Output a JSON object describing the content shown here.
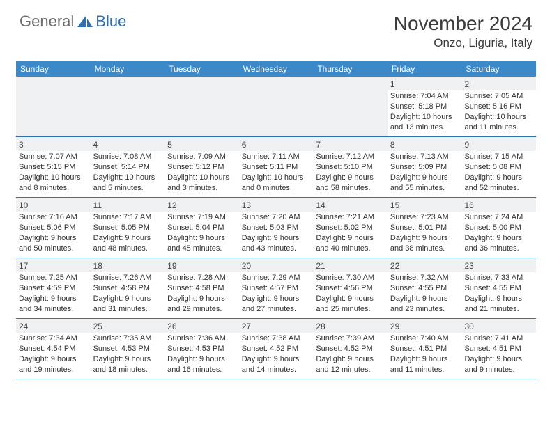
{
  "logo": {
    "text1": "General",
    "text2": "Blue"
  },
  "title": "November 2024",
  "location": "Onzo, Liguria, Italy",
  "colors": {
    "header_bar": "#3b89c9",
    "shade": "#eef0f2",
    "rule": "#2f6fb0",
    "logo_gray": "#6b6b6b",
    "logo_blue": "#2f6fb0"
  },
  "dow": [
    "Sunday",
    "Monday",
    "Tuesday",
    "Wednesday",
    "Thursday",
    "Friday",
    "Saturday"
  ],
  "weeks": [
    [
      null,
      null,
      null,
      null,
      null,
      {
        "n": "1",
        "sr": "Sunrise: 7:04 AM",
        "ss": "Sunset: 5:18 PM",
        "dl": "Daylight: 10 hours and 13 minutes."
      },
      {
        "n": "2",
        "sr": "Sunrise: 7:05 AM",
        "ss": "Sunset: 5:16 PM",
        "dl": "Daylight: 10 hours and 11 minutes."
      }
    ],
    [
      {
        "n": "3",
        "sr": "Sunrise: 7:07 AM",
        "ss": "Sunset: 5:15 PM",
        "dl": "Daylight: 10 hours and 8 minutes."
      },
      {
        "n": "4",
        "sr": "Sunrise: 7:08 AM",
        "ss": "Sunset: 5:14 PM",
        "dl": "Daylight: 10 hours and 5 minutes."
      },
      {
        "n": "5",
        "sr": "Sunrise: 7:09 AM",
        "ss": "Sunset: 5:12 PM",
        "dl": "Daylight: 10 hours and 3 minutes."
      },
      {
        "n": "6",
        "sr": "Sunrise: 7:11 AM",
        "ss": "Sunset: 5:11 PM",
        "dl": "Daylight: 10 hours and 0 minutes."
      },
      {
        "n": "7",
        "sr": "Sunrise: 7:12 AM",
        "ss": "Sunset: 5:10 PM",
        "dl": "Daylight: 9 hours and 58 minutes."
      },
      {
        "n": "8",
        "sr": "Sunrise: 7:13 AM",
        "ss": "Sunset: 5:09 PM",
        "dl": "Daylight: 9 hours and 55 minutes."
      },
      {
        "n": "9",
        "sr": "Sunrise: 7:15 AM",
        "ss": "Sunset: 5:08 PM",
        "dl": "Daylight: 9 hours and 52 minutes."
      }
    ],
    [
      {
        "n": "10",
        "sr": "Sunrise: 7:16 AM",
        "ss": "Sunset: 5:06 PM",
        "dl": "Daylight: 9 hours and 50 minutes."
      },
      {
        "n": "11",
        "sr": "Sunrise: 7:17 AM",
        "ss": "Sunset: 5:05 PM",
        "dl": "Daylight: 9 hours and 48 minutes."
      },
      {
        "n": "12",
        "sr": "Sunrise: 7:19 AM",
        "ss": "Sunset: 5:04 PM",
        "dl": "Daylight: 9 hours and 45 minutes."
      },
      {
        "n": "13",
        "sr": "Sunrise: 7:20 AM",
        "ss": "Sunset: 5:03 PM",
        "dl": "Daylight: 9 hours and 43 minutes."
      },
      {
        "n": "14",
        "sr": "Sunrise: 7:21 AM",
        "ss": "Sunset: 5:02 PM",
        "dl": "Daylight: 9 hours and 40 minutes."
      },
      {
        "n": "15",
        "sr": "Sunrise: 7:23 AM",
        "ss": "Sunset: 5:01 PM",
        "dl": "Daylight: 9 hours and 38 minutes."
      },
      {
        "n": "16",
        "sr": "Sunrise: 7:24 AM",
        "ss": "Sunset: 5:00 PM",
        "dl": "Daylight: 9 hours and 36 minutes."
      }
    ],
    [
      {
        "n": "17",
        "sr": "Sunrise: 7:25 AM",
        "ss": "Sunset: 4:59 PM",
        "dl": "Daylight: 9 hours and 34 minutes."
      },
      {
        "n": "18",
        "sr": "Sunrise: 7:26 AM",
        "ss": "Sunset: 4:58 PM",
        "dl": "Daylight: 9 hours and 31 minutes."
      },
      {
        "n": "19",
        "sr": "Sunrise: 7:28 AM",
        "ss": "Sunset: 4:58 PM",
        "dl": "Daylight: 9 hours and 29 minutes."
      },
      {
        "n": "20",
        "sr": "Sunrise: 7:29 AM",
        "ss": "Sunset: 4:57 PM",
        "dl": "Daylight: 9 hours and 27 minutes."
      },
      {
        "n": "21",
        "sr": "Sunrise: 7:30 AM",
        "ss": "Sunset: 4:56 PM",
        "dl": "Daylight: 9 hours and 25 minutes."
      },
      {
        "n": "22",
        "sr": "Sunrise: 7:32 AM",
        "ss": "Sunset: 4:55 PM",
        "dl": "Daylight: 9 hours and 23 minutes."
      },
      {
        "n": "23",
        "sr": "Sunrise: 7:33 AM",
        "ss": "Sunset: 4:55 PM",
        "dl": "Daylight: 9 hours and 21 minutes."
      }
    ],
    [
      {
        "n": "24",
        "sr": "Sunrise: 7:34 AM",
        "ss": "Sunset: 4:54 PM",
        "dl": "Daylight: 9 hours and 19 minutes."
      },
      {
        "n": "25",
        "sr": "Sunrise: 7:35 AM",
        "ss": "Sunset: 4:53 PM",
        "dl": "Daylight: 9 hours and 18 minutes."
      },
      {
        "n": "26",
        "sr": "Sunrise: 7:36 AM",
        "ss": "Sunset: 4:53 PM",
        "dl": "Daylight: 9 hours and 16 minutes."
      },
      {
        "n": "27",
        "sr": "Sunrise: 7:38 AM",
        "ss": "Sunset: 4:52 PM",
        "dl": "Daylight: 9 hours and 14 minutes."
      },
      {
        "n": "28",
        "sr": "Sunrise: 7:39 AM",
        "ss": "Sunset: 4:52 PM",
        "dl": "Daylight: 9 hours and 12 minutes."
      },
      {
        "n": "29",
        "sr": "Sunrise: 7:40 AM",
        "ss": "Sunset: 4:51 PM",
        "dl": "Daylight: 9 hours and 11 minutes."
      },
      {
        "n": "30",
        "sr": "Sunrise: 7:41 AM",
        "ss": "Sunset: 4:51 PM",
        "dl": "Daylight: 9 hours and 9 minutes."
      }
    ]
  ]
}
